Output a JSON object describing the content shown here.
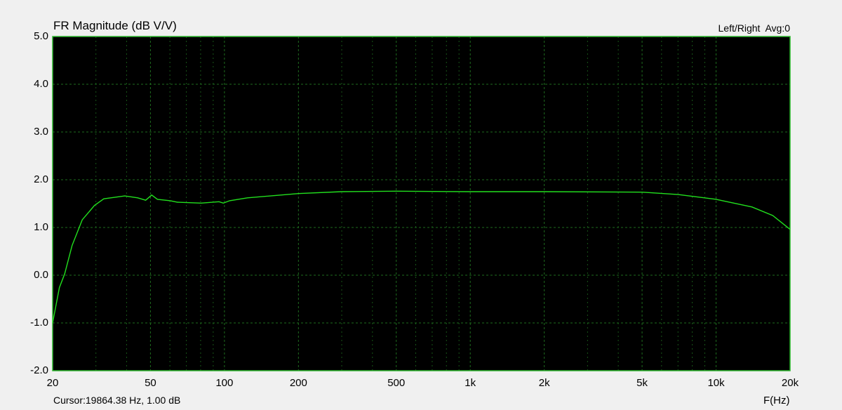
{
  "chart_data": {
    "type": "line",
    "title": "FR Magnitude (dB V/V)",
    "legend_text": "Left/Right  Avg:0",
    "xlabel": "F(Hz)",
    "ylabel": "",
    "x_scale": "log",
    "xlim": [
      20,
      20000
    ],
    "ylim": [
      -2.0,
      5.0
    ],
    "x_ticks": [
      20,
      50,
      100,
      200,
      500,
      1000,
      2000,
      5000,
      10000,
      20000
    ],
    "x_tick_labels": [
      "20",
      "50",
      "100",
      "200",
      "500",
      "1k",
      "2k",
      "5k",
      "10k",
      "20k"
    ],
    "y_ticks": [
      5,
      4,
      3,
      2,
      1,
      0,
      -1,
      -2
    ],
    "y_tick_labels": [
      "5.0",
      "4.0",
      "3.0",
      "2.0",
      "1.0",
      "0.0",
      "-1.0",
      "-2.0"
    ],
    "grid": true,
    "background": "#000000",
    "grid_color": "#1e6b1e",
    "series": [
      {
        "color": "#22e01e",
        "x": [
          20,
          21.3,
          22.4,
          24.0,
          26.4,
          29.6,
          32.3,
          39.3,
          44.4,
          47.8,
          50.6,
          53.4,
          60.2,
          64.4,
          80.4,
          95,
          99,
          105,
          124,
          200,
          300,
          500,
          1000,
          2000,
          5000,
          7000,
          10000,
          14000,
          17000,
          20000
        ],
        "y": [
          -1.0,
          -0.26,
          0.03,
          0.62,
          1.16,
          1.46,
          1.6,
          1.66,
          1.62,
          1.57,
          1.68,
          1.59,
          1.56,
          1.53,
          1.51,
          1.54,
          1.51,
          1.56,
          1.62,
          1.71,
          1.75,
          1.76,
          1.75,
          1.75,
          1.74,
          1.69,
          1.59,
          1.43,
          1.25,
          0.96
        ]
      }
    ]
  },
  "status": {
    "cursor": "Cursor:19864.38 Hz, 1.00 dB"
  }
}
